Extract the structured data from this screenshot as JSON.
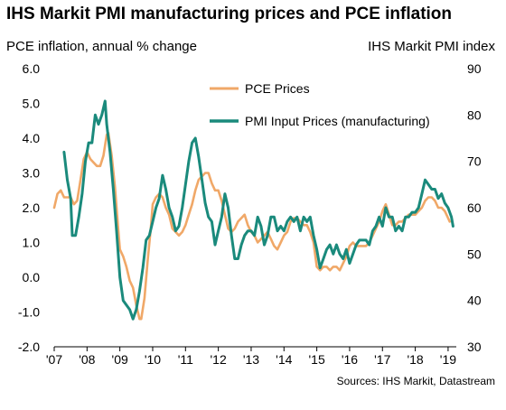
{
  "chart_data": {
    "type": "line",
    "title": "IHS Markit PMI manufacturing prices and PCE inflation",
    "ylabel_left": "PCE inflation, annual % change",
    "ylabel_right": "IHS Markit PMI index",
    "source": "Sources: IHS Markit, Datastream",
    "ylim_left": [
      -2.0,
      6.0
    ],
    "ylim_right": [
      30,
      90
    ],
    "yticks_left": [
      "6.0",
      "5.0",
      "4.0",
      "3.0",
      "2.0",
      "1.0",
      "0.0",
      "-1.0",
      "-2.0"
    ],
    "yticks_right": [
      "90",
      "80",
      "70",
      "60",
      "50",
      "40",
      "30"
    ],
    "x_range": [
      2007.0,
      2019.25
    ],
    "xticks": [
      "'07",
      "'08",
      "'09",
      "'10",
      "'11",
      "'12",
      "'13",
      "'14",
      "'15",
      "'16",
      "'17",
      "'18",
      "'19"
    ],
    "legend_position": "top-right",
    "grid": false,
    "series": [
      {
        "name": "PCE Prices",
        "axis": "left",
        "color": "#f0a868",
        "points": [
          [
            2007.0,
            2.0
          ],
          [
            2007.1,
            2.4
          ],
          [
            2007.2,
            2.5
          ],
          [
            2007.3,
            2.3
          ],
          [
            2007.4,
            2.3
          ],
          [
            2007.5,
            2.3
          ],
          [
            2007.6,
            2.1
          ],
          [
            2007.7,
            2.2
          ],
          [
            2007.8,
            2.8
          ],
          [
            2007.9,
            3.4
          ],
          [
            2008.0,
            3.6
          ],
          [
            2008.1,
            3.4
          ],
          [
            2008.2,
            3.3
          ],
          [
            2008.3,
            3.2
          ],
          [
            2008.4,
            3.2
          ],
          [
            2008.5,
            3.5
          ],
          [
            2008.6,
            4.1
          ],
          [
            2008.65,
            4.15
          ],
          [
            2008.75,
            3.5
          ],
          [
            2008.85,
            2.6
          ],
          [
            2008.95,
            1.4
          ],
          [
            2009.0,
            0.8
          ],
          [
            2009.1,
            0.6
          ],
          [
            2009.2,
            0.3
          ],
          [
            2009.3,
            -0.1
          ],
          [
            2009.4,
            -0.3
          ],
          [
            2009.5,
            -0.8
          ],
          [
            2009.6,
            -1.2
          ],
          [
            2009.65,
            -1.2
          ],
          [
            2009.75,
            -0.6
          ],
          [
            2009.85,
            0.5
          ],
          [
            2009.95,
            1.5
          ],
          [
            2010.0,
            2.1
          ],
          [
            2010.1,
            2.3
          ],
          [
            2010.2,
            2.4
          ],
          [
            2010.3,
            2.3
          ],
          [
            2010.4,
            2.0
          ],
          [
            2010.5,
            1.8
          ],
          [
            2010.6,
            1.4
          ],
          [
            2010.7,
            1.3
          ],
          [
            2010.8,
            1.2
          ],
          [
            2010.9,
            1.3
          ],
          [
            2011.0,
            1.5
          ],
          [
            2011.1,
            1.8
          ],
          [
            2011.2,
            2.1
          ],
          [
            2011.3,
            2.5
          ],
          [
            2011.4,
            2.8
          ],
          [
            2011.5,
            2.9
          ],
          [
            2011.6,
            3.0
          ],
          [
            2011.7,
            3.0
          ],
          [
            2011.8,
            2.7
          ],
          [
            2011.9,
            2.5
          ],
          [
            2012.0,
            2.5
          ],
          [
            2012.1,
            2.2
          ],
          [
            2012.2,
            1.8
          ],
          [
            2012.3,
            1.4
          ],
          [
            2012.4,
            1.3
          ],
          [
            2012.5,
            1.4
          ],
          [
            2012.6,
            1.6
          ],
          [
            2012.7,
            1.7
          ],
          [
            2012.8,
            1.8
          ],
          [
            2012.9,
            1.5
          ],
          [
            2013.0,
            1.3
          ],
          [
            2013.1,
            1.2
          ],
          [
            2013.2,
            1.0
          ],
          [
            2013.3,
            1.1
          ],
          [
            2013.4,
            1.2
          ],
          [
            2013.5,
            1.3
          ],
          [
            2013.6,
            1.1
          ],
          [
            2013.7,
            0.9
          ],
          [
            2013.8,
            0.8
          ],
          [
            2013.9,
            1.0
          ],
          [
            2014.0,
            1.2
          ],
          [
            2014.1,
            1.3
          ],
          [
            2014.2,
            1.6
          ],
          [
            2014.3,
            1.7
          ],
          [
            2014.4,
            1.7
          ],
          [
            2014.5,
            1.6
          ],
          [
            2014.6,
            1.5
          ],
          [
            2014.7,
            1.5
          ],
          [
            2014.8,
            1.3
          ],
          [
            2014.9,
            1.0
          ],
          [
            2015.0,
            0.3
          ],
          [
            2015.1,
            0.2
          ],
          [
            2015.2,
            0.3
          ],
          [
            2015.3,
            0.3
          ],
          [
            2015.4,
            0.2
          ],
          [
            2015.5,
            0.3
          ],
          [
            2015.6,
            0.3
          ],
          [
            2015.7,
            0.2
          ],
          [
            2015.8,
            0.4
          ],
          [
            2015.9,
            0.6
          ],
          [
            2016.0,
            0.9
          ],
          [
            2016.1,
            1.0
          ],
          [
            2016.2,
            0.9
          ],
          [
            2016.3,
            0.9
          ],
          [
            2016.4,
            0.9
          ],
          [
            2016.5,
            0.9
          ],
          [
            2016.6,
            1.0
          ],
          [
            2016.7,
            1.2
          ],
          [
            2016.8,
            1.4
          ],
          [
            2016.9,
            1.6
          ],
          [
            2017.0,
            1.9
          ],
          [
            2017.1,
            2.1
          ],
          [
            2017.2,
            1.8
          ],
          [
            2017.3,
            1.5
          ],
          [
            2017.4,
            1.5
          ],
          [
            2017.5,
            1.6
          ],
          [
            2017.6,
            1.6
          ],
          [
            2017.7,
            1.7
          ],
          [
            2017.8,
            1.8
          ],
          [
            2017.9,
            1.8
          ],
          [
            2018.0,
            1.8
          ],
          [
            2018.1,
            1.9
          ],
          [
            2018.2,
            2.0
          ],
          [
            2018.3,
            2.2
          ],
          [
            2018.4,
            2.3
          ],
          [
            2018.5,
            2.3
          ],
          [
            2018.6,
            2.2
          ],
          [
            2018.7,
            2.0
          ],
          [
            2018.8,
            2.0
          ],
          [
            2018.9,
            1.9
          ],
          [
            2019.0,
            1.7
          ],
          [
            2019.05,
            1.6
          ]
        ]
      },
      {
        "name": "PMI Input Prices (manufacturing)",
        "axis": "right",
        "color": "#1a8a7c",
        "points": [
          [
            2007.3,
            72
          ],
          [
            2007.4,
            66
          ],
          [
            2007.5,
            62
          ],
          [
            2007.55,
            54
          ],
          [
            2007.65,
            54
          ],
          [
            2007.75,
            58
          ],
          [
            2007.85,
            63
          ],
          [
            2007.95,
            70
          ],
          [
            2008.05,
            74
          ],
          [
            2008.15,
            74
          ],
          [
            2008.25,
            80
          ],
          [
            2008.35,
            78
          ],
          [
            2008.45,
            80
          ],
          [
            2008.55,
            83
          ],
          [
            2008.6,
            78
          ],
          [
            2008.7,
            72
          ],
          [
            2008.8,
            64
          ],
          [
            2008.9,
            55
          ],
          [
            2009.0,
            45
          ],
          [
            2009.1,
            40
          ],
          [
            2009.2,
            39
          ],
          [
            2009.3,
            38
          ],
          [
            2009.4,
            36
          ],
          [
            2009.5,
            38
          ],
          [
            2009.6,
            42
          ],
          [
            2009.7,
            47
          ],
          [
            2009.8,
            53
          ],
          [
            2009.9,
            54
          ],
          [
            2010.0,
            57
          ],
          [
            2010.1,
            60
          ],
          [
            2010.2,
            62
          ],
          [
            2010.3,
            67
          ],
          [
            2010.4,
            64
          ],
          [
            2010.5,
            60
          ],
          [
            2010.6,
            58
          ],
          [
            2010.7,
            55
          ],
          [
            2010.8,
            56
          ],
          [
            2010.9,
            60
          ],
          [
            2011.0,
            65
          ],
          [
            2011.1,
            70
          ],
          [
            2011.2,
            74
          ],
          [
            2011.3,
            75
          ],
          [
            2011.4,
            71
          ],
          [
            2011.5,
            66
          ],
          [
            2011.6,
            61
          ],
          [
            2011.7,
            58
          ],
          [
            2011.8,
            57
          ],
          [
            2011.9,
            52
          ],
          [
            2012.0,
            55
          ],
          [
            2012.1,
            58
          ],
          [
            2012.2,
            63
          ],
          [
            2012.3,
            60
          ],
          [
            2012.4,
            54
          ],
          [
            2012.5,
            49
          ],
          [
            2012.6,
            49
          ],
          [
            2012.7,
            52
          ],
          [
            2012.8,
            54
          ],
          [
            2012.9,
            55
          ],
          [
            2013.0,
            55
          ],
          [
            2013.1,
            54
          ],
          [
            2013.2,
            58
          ],
          [
            2013.3,
            56
          ],
          [
            2013.4,
            52
          ],
          [
            2013.5,
            54
          ],
          [
            2013.6,
            58
          ],
          [
            2013.7,
            58
          ],
          [
            2013.8,
            55
          ],
          [
            2013.9,
            56
          ],
          [
            2014.0,
            55
          ],
          [
            2014.1,
            57
          ],
          [
            2014.2,
            58
          ],
          [
            2014.3,
            57
          ],
          [
            2014.4,
            58
          ],
          [
            2014.5,
            55
          ],
          [
            2014.6,
            58
          ],
          [
            2014.7,
            57
          ],
          [
            2014.8,
            58
          ],
          [
            2014.9,
            54
          ],
          [
            2015.0,
            51
          ],
          [
            2015.1,
            47
          ],
          [
            2015.2,
            49
          ],
          [
            2015.3,
            51
          ],
          [
            2015.4,
            52
          ],
          [
            2015.5,
            50
          ],
          [
            2015.6,
            52
          ],
          [
            2015.7,
            50
          ],
          [
            2015.8,
            49
          ],
          [
            2015.9,
            51
          ],
          [
            2016.0,
            48
          ],
          [
            2016.1,
            50
          ],
          [
            2016.2,
            52
          ],
          [
            2016.3,
            53
          ],
          [
            2016.4,
            53
          ],
          [
            2016.5,
            53
          ],
          [
            2016.6,
            52
          ],
          [
            2016.7,
            55
          ],
          [
            2016.8,
            56
          ],
          [
            2016.9,
            58
          ],
          [
            2017.0,
            56
          ],
          [
            2017.1,
            60
          ],
          [
            2017.2,
            58
          ],
          [
            2017.3,
            58
          ],
          [
            2017.4,
            55
          ],
          [
            2017.5,
            56
          ],
          [
            2017.6,
            55
          ],
          [
            2017.7,
            58
          ],
          [
            2017.8,
            58
          ],
          [
            2017.9,
            59
          ],
          [
            2018.0,
            59
          ],
          [
            2018.1,
            60
          ],
          [
            2018.2,
            63
          ],
          [
            2018.3,
            66
          ],
          [
            2018.4,
            65
          ],
          [
            2018.5,
            64
          ],
          [
            2018.6,
            64
          ],
          [
            2018.7,
            62
          ],
          [
            2018.8,
            63
          ],
          [
            2018.9,
            61
          ],
          [
            2019.0,
            60
          ],
          [
            2019.1,
            58
          ],
          [
            2019.15,
            56
          ]
        ]
      }
    ]
  }
}
